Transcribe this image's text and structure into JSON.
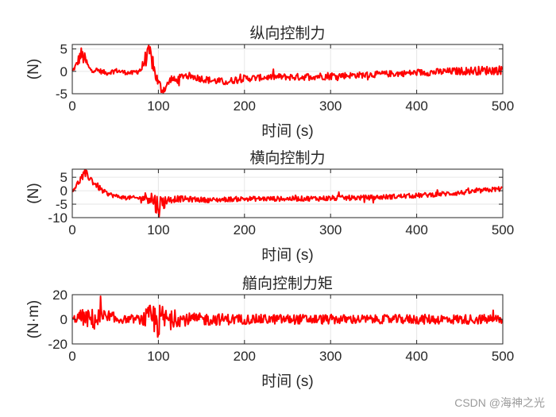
{
  "chart_data": [
    {
      "type": "line",
      "title": "纵向控制力",
      "xlabel": "时间 (s)",
      "ylabel": "(N)",
      "xlim": [
        0,
        500
      ],
      "ylim": [
        -5,
        6
      ],
      "xticks": [
        "0",
        "100",
        "200",
        "300",
        "400",
        "500"
      ],
      "yticks": [
        "5",
        "0",
        "-5"
      ],
      "grid": true,
      "series": [
        {
          "color": "#ff0000",
          "x": [
            0,
            5,
            10,
            15,
            20,
            30,
            40,
            50,
            60,
            70,
            80,
            85,
            90,
            95,
            100,
            105,
            110,
            115,
            120,
            130,
            140,
            150,
            160,
            170,
            180,
            190,
            200,
            220,
            240,
            260,
            280,
            300,
            320,
            340,
            360,
            380,
            400,
            420,
            440,
            460,
            480,
            500
          ],
          "y": [
            0,
            1.5,
            3.8,
            2.5,
            0.5,
            0.2,
            -0.4,
            0.2,
            -0.2,
            -0.4,
            0.4,
            2.8,
            4.2,
            0.4,
            -2.8,
            -4.2,
            -3.2,
            -1.5,
            -2.2,
            -0.8,
            -1.2,
            -1.6,
            -2.0,
            -2.2,
            -2.4,
            -1.8,
            -1.6,
            -1.4,
            -1.2,
            -1.3,
            -1.1,
            -1.0,
            -0.9,
            -0.8,
            -0.6,
            -0.5,
            -0.3,
            -0.2,
            0.0,
            0.1,
            0.2,
            0.3
          ],
          "noise": [
            0.3,
            0.8,
            1.8,
            1.5,
            0.6,
            0.6,
            0.5,
            0.5,
            0.5,
            0.5,
            0.8,
            1.8,
            2.0,
            1.6,
            1.4,
            1.4,
            1.0,
            0.8,
            0.9,
            0.8,
            0.8,
            0.8,
            0.8,
            0.8,
            0.8,
            0.8,
            0.8,
            0.7,
            0.7,
            0.8,
            0.8,
            0.9,
            0.7,
            0.7,
            0.7,
            0.7,
            0.7,
            0.8,
            0.8,
            0.9,
            1.0,
            1.0
          ]
        }
      ]
    },
    {
      "type": "line",
      "title": "横向控制力",
      "xlabel": "时间 (s)",
      "ylabel": "(N)",
      "xlim": [
        0,
        500
      ],
      "ylim": [
        -10,
        8
      ],
      "xticks": [
        "0",
        "100",
        "200",
        "300",
        "400",
        "500"
      ],
      "yticks": [
        "5",
        "0",
        "-5",
        "-10"
      ],
      "grid": true,
      "series": [
        {
          "color": "#ff0000",
          "x": [
            0,
            5,
            10,
            15,
            20,
            25,
            30,
            35,
            40,
            50,
            60,
            80,
            90,
            95,
            100,
            105,
            110,
            120,
            140,
            160,
            180,
            200,
            250,
            300,
            350,
            400,
            450,
            500
          ],
          "y": [
            0,
            2.0,
            4.5,
            6.2,
            5.0,
            3.0,
            1.5,
            0.0,
            -1.0,
            -2.0,
            -2.5,
            -2.8,
            -2.0,
            -4.0,
            -6.0,
            -4.5,
            -3.5,
            -3.0,
            -3.2,
            -3.5,
            -3.2,
            -3.0,
            -3.0,
            -2.8,
            -2.5,
            -1.8,
            -0.8,
            0.8
          ],
          "noise": [
            0.5,
            1.0,
            1.5,
            1.8,
            1.5,
            1.4,
            1.2,
            1.0,
            0.8,
            0.8,
            0.7,
            0.8,
            3.0,
            4.0,
            4.5,
            3.5,
            1.5,
            1.2,
            1.0,
            0.9,
            0.9,
            0.9,
            0.9,
            1.0,
            0.9,
            0.9,
            0.9,
            0.9
          ]
        }
      ]
    },
    {
      "type": "line",
      "title": "艏向控制力矩",
      "xlabel": "时间 (s)",
      "ylabel": "(N·m)",
      "xlim": [
        0,
        500
      ],
      "ylim": [
        -20,
        20
      ],
      "xticks": [
        "0",
        "100",
        "200",
        "300",
        "400",
        "500"
      ],
      "yticks": [
        "20",
        "0",
        "-20"
      ],
      "grid": true,
      "series": [
        {
          "color": "#ff0000",
          "x": [
            0,
            10,
            20,
            30,
            40,
            50,
            60,
            70,
            80,
            90,
            95,
            100,
            105,
            110,
            120,
            140,
            160,
            200,
            250,
            300,
            350,
            400,
            450,
            500
          ],
          "y": [
            0,
            2,
            0,
            0,
            0,
            0,
            0,
            0,
            0,
            0,
            0,
            -2,
            0,
            0,
            0,
            0,
            0,
            0,
            0,
            0,
            0,
            0,
            0,
            0
          ],
          "noise": [
            2,
            6,
            8,
            10,
            9,
            5,
            3,
            3,
            4,
            12,
            14,
            14,
            12,
            8,
            6,
            5,
            5,
            4,
            4,
            4,
            3.5,
            4,
            4,
            4
          ]
        }
      ]
    }
  ],
  "watermark": "CSDN @海神之光"
}
